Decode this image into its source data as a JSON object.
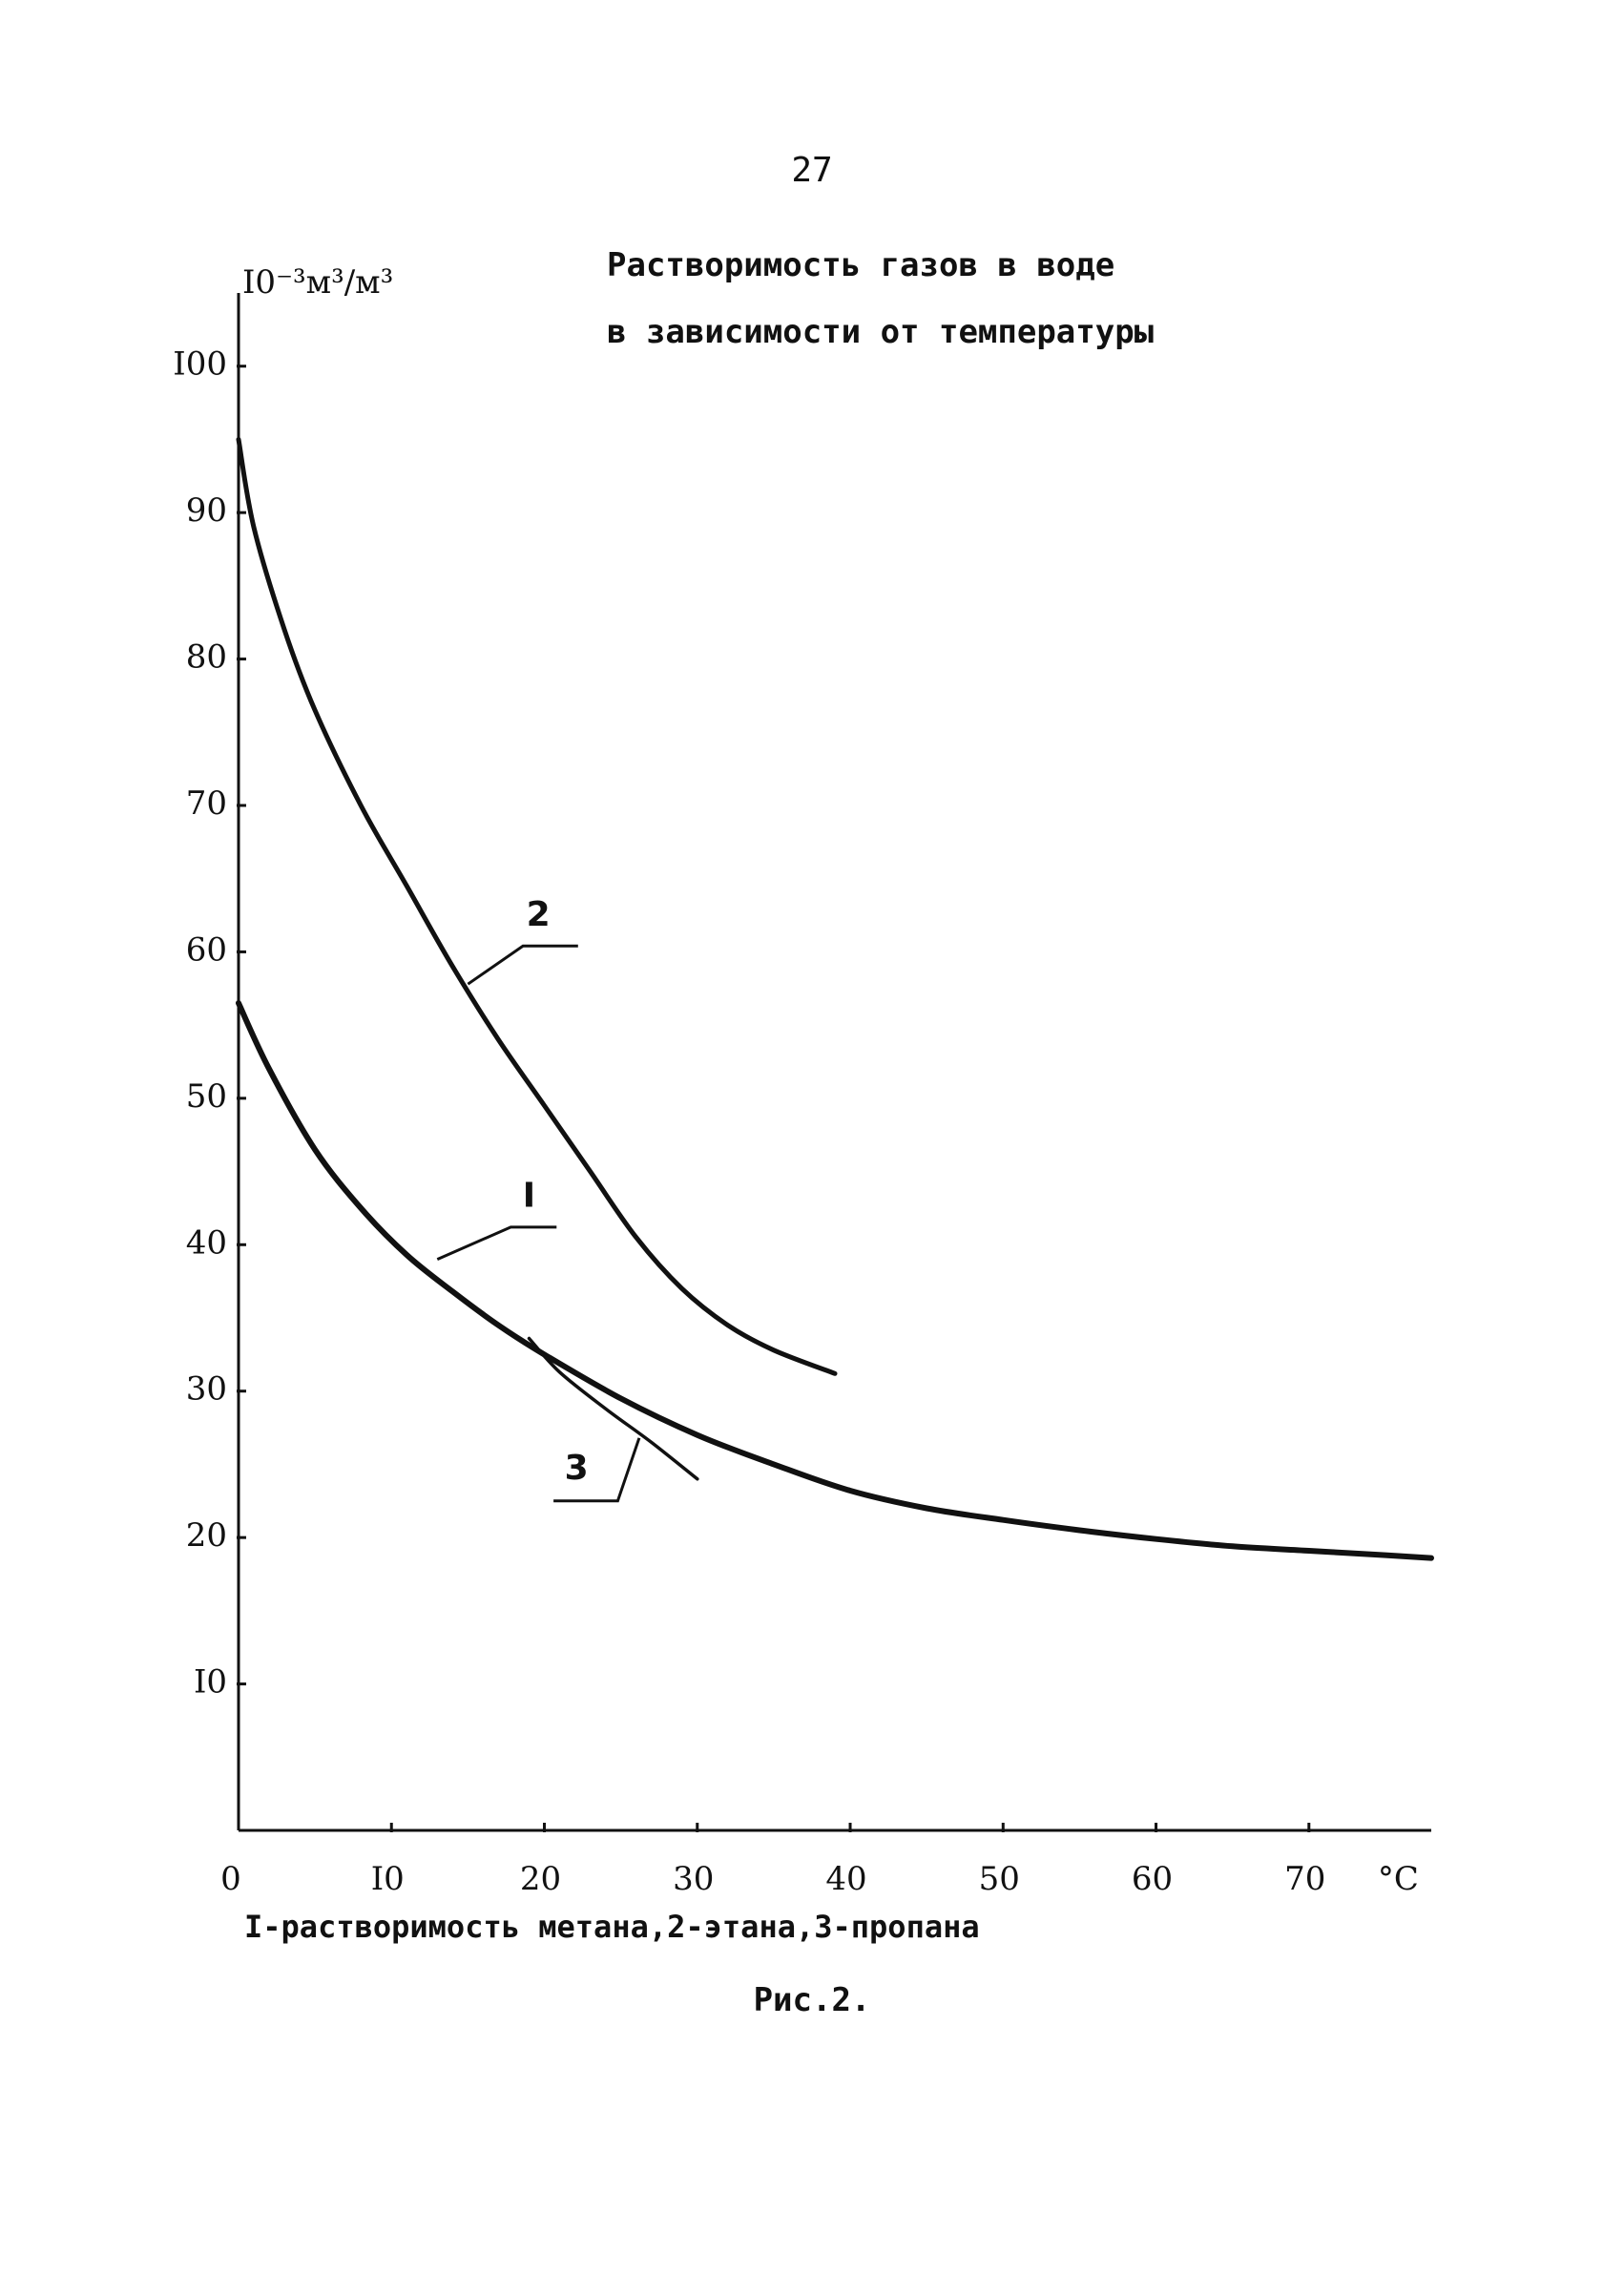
{
  "page_number": "27",
  "title_lines": [
    "Растворимость газов в воде",
    "в зависимости от температуры"
  ],
  "caption": "I-растворимость метана,2-этана,3-пропана",
  "figure_label": "Рис.2.",
  "colors": {
    "ink": "#111111",
    "background": "#ffffff"
  },
  "chart_data": {
    "type": "line",
    "title": "Растворимость газов в воде в зависимости от температуры",
    "ylabel": "I0⁻³м³/м³",
    "xlabel": "°C",
    "xlim": [
      0,
      78
    ],
    "ylim": [
      0,
      105
    ],
    "x_ticks": [
      0,
      10,
      20,
      30,
      40,
      50,
      60,
      70
    ],
    "x_tick_labels": [
      "0",
      "I0",
      "20",
      "30",
      "40",
      "50",
      "60",
      "70"
    ],
    "y_ticks": [
      10,
      20,
      30,
      40,
      50,
      60,
      70,
      80,
      90,
      100
    ],
    "y_tick_labels": [
      "I0",
      "20",
      "30",
      "40",
      "50",
      "60",
      "70",
      "80",
      "90",
      "I00"
    ],
    "grid": false,
    "legend": "none",
    "series": [
      {
        "name": "I",
        "points": [
          [
            0,
            56.5
          ],
          [
            2,
            52
          ],
          [
            5,
            46.5
          ],
          [
            8,
            42.5
          ],
          [
            11,
            39.3
          ],
          [
            14,
            36.8
          ],
          [
            17,
            34.5
          ],
          [
            20,
            32.5
          ],
          [
            25,
            29.5
          ],
          [
            30,
            27
          ],
          [
            35,
            25
          ],
          [
            40,
            23.2
          ],
          [
            45,
            22
          ],
          [
            50,
            21.2
          ],
          [
            55,
            20.5
          ],
          [
            60,
            19.9
          ],
          [
            65,
            19.4
          ],
          [
            70,
            19.1
          ],
          [
            75,
            18.8
          ],
          [
            78,
            18.6
          ]
        ]
      },
      {
        "name": "2",
        "points": [
          [
            0,
            95
          ],
          [
            1,
            89
          ],
          [
            3,
            82
          ],
          [
            5,
            76.5
          ],
          [
            8,
            70
          ],
          [
            11,
            64.5
          ],
          [
            14,
            59
          ],
          [
            17,
            54
          ],
          [
            20,
            49.5
          ],
          [
            23,
            45
          ],
          [
            26,
            40.5
          ],
          [
            29,
            37
          ],
          [
            32,
            34.5
          ],
          [
            35,
            32.8
          ],
          [
            39,
            31.2
          ]
        ]
      },
      {
        "name": "3",
        "points": [
          [
            19,
            33.6
          ],
          [
            21,
            31.3
          ],
          [
            24,
            28.8
          ],
          [
            27,
            26.5
          ],
          [
            30,
            24
          ]
        ]
      }
    ]
  }
}
